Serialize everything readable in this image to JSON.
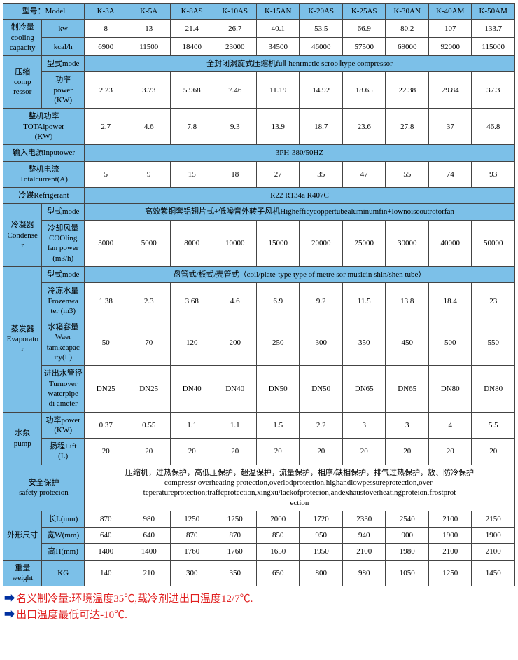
{
  "colors": {
    "header_bg": "#7cc0e8",
    "border": "#444444",
    "note_text": "#e02020",
    "arrow": "#0030a0"
  },
  "col_widths": {
    "c0": 55,
    "c1": 60,
    "models": 61
  },
  "header": {
    "model_label": "型号：Model",
    "models": [
      "K-3A",
      "K-5A",
      "K-8AS",
      "K-10AS",
      "K-15AN",
      "K-20AS",
      "K-25AS",
      "K-30AN",
      "K-40AM",
      "K-50AM"
    ]
  },
  "rows": [
    {
      "group": "制冷量\ncooling\ncapacity",
      "sub": "kw",
      "vals": [
        "8",
        "13",
        "21.4",
        "26.7",
        "40.1",
        "53.5",
        "66.9",
        "80.2",
        "107",
        "133.7"
      ]
    },
    {
      "sub": "kcal/h",
      "vals": [
        "6900",
        "11500",
        "18400",
        "23000",
        "34500",
        "46000",
        "57500",
        "69000",
        "92000",
        "115000"
      ]
    },
    {
      "group": "压缩\ncomp\nressor",
      "sub": "型式mode",
      "span": "全封闭涡旋式压缩机fuⅡ-henrmetic scrooⅡtype compressor"
    },
    {
      "sub": "功率\npower\n(KW)",
      "vals": [
        "2.23",
        "3.73",
        "5.968",
        "7.46",
        "11.19",
        "14.92",
        "18.65",
        "22.38",
        "29.84",
        "37.3"
      ]
    },
    {
      "full": "整机功率\nTOTAlpower\n(KW)",
      "vals": [
        "2.7",
        "4.6",
        "7.8",
        "9.3",
        "13.9",
        "18.7",
        "23.6",
        "27.8",
        "37",
        "46.8"
      ]
    },
    {
      "full": "输入电源Inputower",
      "span": "3PH-380/50HZ"
    },
    {
      "full": "整机电流\nTotalcurrent(A)",
      "vals": [
        "5",
        "9",
        "15",
        "18",
        "27",
        "35",
        "47",
        "55",
        "74",
        "93"
      ]
    },
    {
      "full": "冷媒Refrigerant",
      "span": "R22 R134a R407C"
    },
    {
      "group": "冷凝器\nCondense\nr",
      "sub": "型式mode",
      "span": "高效紫铜套铝翅片式+低噪音外转子风机Highefficycoppertubealuminumfin+lownoiseoutrotorfan"
    },
    {
      "sub": "冷却风量\nCOOling\nfan power\n(m3/h)",
      "vals": [
        "3000",
        "5000",
        "8000",
        "10000",
        "15000",
        "20000",
        "25000",
        "30000",
        "40000",
        "50000"
      ]
    },
    {
      "group": "蒸发器\nEvaporato\nr",
      "sub": "型式mode",
      "span": "盘管式/板式/壳管式（coil/plate-type type of metre sor musicin shin/shen tube）"
    },
    {
      "sub": "冷冻水量\nFrozenwa\nter (m3)",
      "vals": [
        "1.38",
        "2.3",
        "3.68",
        "4.6",
        "6.9",
        "9.2",
        "11.5",
        "13.8",
        "18.4",
        "23"
      ]
    },
    {
      "sub": "水箱容量\nWaer\ntamkcapac\nity(L)",
      "vals": [
        "50",
        "70",
        "120",
        "200",
        "250",
        "300",
        "350",
        "450",
        "500",
        "550"
      ]
    },
    {
      "sub": "进出水管径\nTurnover\nwaterpipe\ndi ameter",
      "vals": [
        "DN25",
        "DN25",
        "DN40",
        "DN40",
        "DN50",
        "DN50",
        "DN65",
        "DN65",
        "DN80",
        "DN80"
      ]
    },
    {
      "group": "水泵\npump",
      "sub": "功率power\n(KW)",
      "vals": [
        "0.37",
        "0.55",
        "1.1",
        "1.1",
        "1.5",
        "2.2",
        "3",
        "3",
        "4",
        "5.5"
      ]
    },
    {
      "sub": "扬程Lift\n(L)",
      "vals": [
        "20",
        "20",
        "20",
        "20",
        "20",
        "20",
        "20",
        "20",
        "20",
        "20"
      ]
    },
    {
      "full": "安全保护\nsafety protecion",
      "span": "压缩机，过热保护，高低压保护，超温保护，流量保护，相序/缺相保护，排气过热保护，放、防冷保护\ncompressr overheating protection,overlodprotection,highandlowpessureprotection,over-\nteperatureprotection;traffcprotection,xingxu/lackofprotecion,andexhaustoverheatingproteion,frostprot\nection"
    },
    {
      "group": "外形尺寸",
      "sub": "长L(mm)",
      "vals": [
        "870",
        "980",
        "1250",
        "1250",
        "2000",
        "1720",
        "2330",
        "2540",
        "2100",
        "2150"
      ]
    },
    {
      "sub": "宽W(mm)",
      "vals": [
        "640",
        "640",
        "870",
        "870",
        "850",
        "950",
        "940",
        "900",
        "1900",
        "1900"
      ]
    },
    {
      "sub": "高H(mm)",
      "vals": [
        "1400",
        "1400",
        "1760",
        "1760",
        "1650",
        "1950",
        "2100",
        "1980",
        "2100",
        "2100"
      ]
    },
    {
      "group": "重量\nweight",
      "sub": "KG",
      "vals": [
        "140",
        "210",
        "300",
        "350",
        "650",
        "800",
        "980",
        "1050",
        "1250",
        "1450"
      ]
    }
  ],
  "notes": [
    "名义制冷量:环境温度35℃,载冷剂进出口温度12/7℃.",
    "出口温度最低可达-10℃."
  ]
}
